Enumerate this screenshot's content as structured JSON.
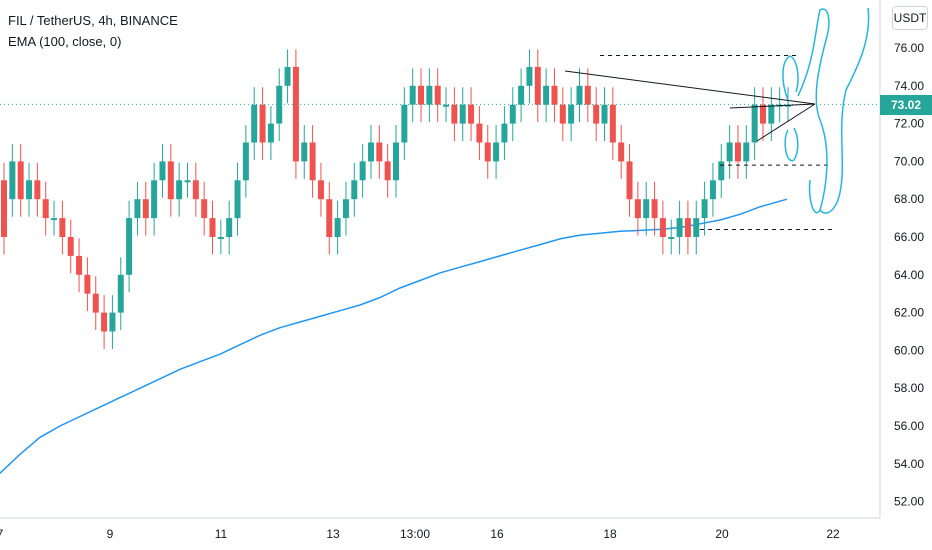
{
  "header": {
    "title": "FIL / TetherUS, 4h, BINANCE",
    "indicator": "EMA (100, close, 0)",
    "unit_button": "USDT"
  },
  "last_price": "73.02",
  "colors": {
    "up": "#26a69a",
    "down": "#ef5350",
    "ema": "#2196f3",
    "drawing": "#26b6d9",
    "line": "#131722"
  },
  "chart_data": {
    "type": "line",
    "y_ticks": [
      "52.00",
      "54.00",
      "56.00",
      "58.00",
      "60.00",
      "62.00",
      "64.00",
      "66.00",
      "68.00",
      "70.00",
      "72.00",
      "74.00",
      "76.00"
    ],
    "x_ticks": [
      "7",
      "9",
      "11",
      "13",
      "13:00",
      "16",
      "18",
      "20",
      "22"
    ],
    "ylim": [
      51,
      77.5
    ],
    "series": [
      {
        "name": "EMA (100, close, 0)",
        "x": [
          0,
          20,
          40,
          60,
          80,
          100,
          120,
          140,
          160,
          180,
          200,
          220,
          240,
          260,
          280,
          300,
          320,
          340,
          360,
          380,
          400,
          420,
          440,
          460,
          480,
          500,
          520,
          540,
          560,
          580,
          600,
          620,
          640,
          660,
          680,
          700,
          720,
          740,
          760,
          787
        ],
        "values": [
          53.5,
          54.5,
          55.4,
          56.0,
          56.5,
          57.0,
          57.5,
          58.0,
          58.5,
          59.0,
          59.4,
          59.8,
          60.3,
          60.8,
          61.2,
          61.5,
          61.8,
          62.1,
          62.4,
          62.8,
          63.3,
          63.7,
          64.1,
          64.4,
          64.7,
          65.0,
          65.3,
          65.6,
          65.9,
          66.1,
          66.2,
          66.3,
          66.35,
          66.4,
          66.5,
          66.7,
          66.9,
          67.2,
          67.6,
          68.0
        ]
      }
    ],
    "candles": [
      [
        69,
        66
      ],
      [
        68,
        70
      ],
      [
        70,
        68
      ],
      [
        68,
        69
      ],
      [
        69,
        68
      ],
      [
        68,
        67
      ],
      [
        67,
        67
      ],
      [
        67,
        66
      ],
      [
        66,
        65
      ],
      [
        65,
        64
      ],
      [
        64,
        63
      ],
      [
        63,
        62
      ],
      [
        62,
        61
      ],
      [
        61,
        62
      ],
      [
        62,
        64
      ],
      [
        64,
        67
      ],
      [
        67,
        68
      ],
      [
        68,
        67
      ],
      [
        67,
        69
      ],
      [
        69,
        70
      ],
      [
        70,
        68
      ],
      [
        68,
        69
      ],
      [
        69,
        69
      ],
      [
        69,
        68
      ],
      [
        68,
        67
      ],
      [
        67,
        66
      ],
      [
        66,
        66
      ],
      [
        66,
        67
      ],
      [
        67,
        69
      ],
      [
        69,
        71
      ],
      [
        71,
        73
      ],
      [
        73,
        71
      ],
      [
        71,
        72
      ],
      [
        72,
        74
      ],
      [
        74,
        75
      ],
      [
        75,
        70
      ],
      [
        70,
        71
      ],
      [
        71,
        69
      ],
      [
        69,
        68
      ],
      [
        68,
        66
      ],
      [
        66,
        67
      ],
      [
        67,
        68
      ],
      [
        68,
        69
      ],
      [
        69,
        70
      ],
      [
        70,
        71
      ],
      [
        71,
        70
      ],
      [
        70,
        69
      ],
      [
        69,
        71
      ],
      [
        71,
        73
      ],
      [
        73,
        74
      ],
      [
        74,
        73
      ],
      [
        73,
        74
      ],
      [
        74,
        73
      ],
      [
        73,
        73
      ],
      [
        73,
        72
      ],
      [
        72,
        73
      ],
      [
        73,
        72
      ],
      [
        72,
        71
      ],
      [
        71,
        70
      ],
      [
        70,
        71
      ],
      [
        71,
        72
      ],
      [
        72,
        73
      ],
      [
        73,
        74
      ],
      [
        74,
        75
      ],
      [
        75,
        73
      ],
      [
        73,
        74
      ],
      [
        74,
        73
      ],
      [
        73,
        72
      ],
      [
        72,
        73
      ],
      [
        73,
        74
      ],
      [
        74,
        73
      ],
      [
        73,
        72
      ],
      [
        72,
        73
      ],
      [
        73,
        71
      ],
      [
        71,
        70
      ],
      [
        70,
        68
      ],
      [
        68,
        67
      ],
      [
        67,
        68
      ],
      [
        68,
        67
      ],
      [
        67,
        66
      ],
      [
        66,
        66
      ],
      [
        66,
        67
      ],
      [
        67,
        66
      ],
      [
        66,
        67
      ],
      [
        67,
        68
      ],
      [
        68,
        69
      ],
      [
        69,
        70
      ],
      [
        70,
        71
      ],
      [
        71,
        70
      ],
      [
        70,
        71
      ],
      [
        71,
        73
      ],
      [
        73,
        72
      ],
      [
        72,
        73
      ],
      [
        73,
        73
      ],
      [
        73,
        73
      ]
    ]
  }
}
